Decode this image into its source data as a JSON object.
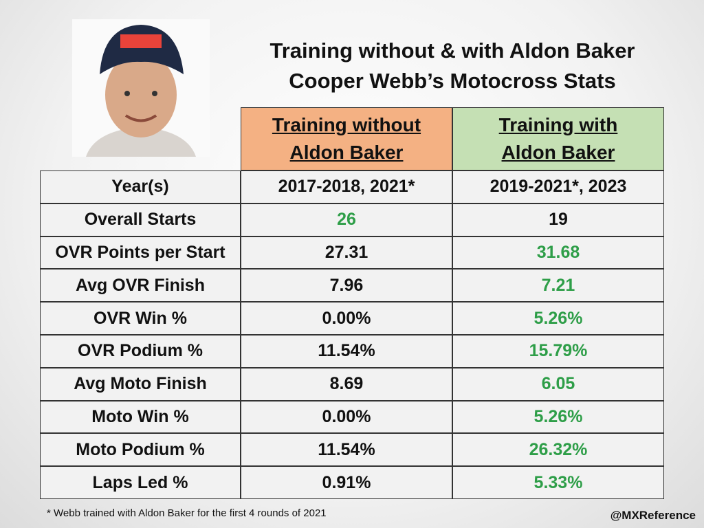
{
  "header": {
    "title_lines": [
      "Training without & with Aldon Baker",
      "Cooper Webb’s Motocross Stats"
    ]
  },
  "table": {
    "columns": [
      [
        "Training without",
        "Aldon Baker"
      ],
      [
        "Training with",
        "Aldon Baker"
      ]
    ],
    "column_colors": [
      "#f4b183",
      "#c5e0b4"
    ],
    "rows": [
      {
        "label": "Year(s)",
        "values": [
          "2017-2018, 2021*",
          "2019-2021*, 2023"
        ],
        "colors": [
          "#111111",
          "#111111"
        ]
      },
      {
        "label": "Overall Starts",
        "values": [
          "26",
          "19"
        ],
        "colors": [
          "#2e9e48",
          "#111111"
        ]
      },
      {
        "label": "OVR Points per Start",
        "values": [
          "27.31",
          "31.68"
        ],
        "colors": [
          "#111111",
          "#2e9e48"
        ]
      },
      {
        "label": "Avg OVR Finish",
        "values": [
          "7.96",
          "7.21"
        ],
        "colors": [
          "#111111",
          "#2e9e48"
        ]
      },
      {
        "label": "OVR Win %",
        "values": [
          "0.00%",
          "5.26%"
        ],
        "colors": [
          "#111111",
          "#2e9e48"
        ]
      },
      {
        "label": "OVR Podium %",
        "values": [
          "11.54%",
          "15.79%"
        ],
        "colors": [
          "#111111",
          "#2e9e48"
        ]
      },
      {
        "label": "Avg Moto Finish",
        "values": [
          "8.69",
          "6.05"
        ],
        "colors": [
          "#111111",
          "#2e9e48"
        ]
      },
      {
        "label": "Moto Win %",
        "values": [
          "0.00%",
          "5.26%"
        ],
        "colors": [
          "#111111",
          "#2e9e48"
        ]
      },
      {
        "label": "Moto Podium %",
        "values": [
          "11.54%",
          "26.32%"
        ],
        "colors": [
          "#111111",
          "#2e9e48"
        ]
      },
      {
        "label": "Laps Led %",
        "values": [
          "0.91%",
          "5.33%"
        ],
        "colors": [
          "#111111",
          "#2e9e48"
        ]
      }
    ]
  },
  "footnote": "* Webb trained with Aldon Baker for the first 4 rounds of 2021",
  "credit": "@MXReference"
}
